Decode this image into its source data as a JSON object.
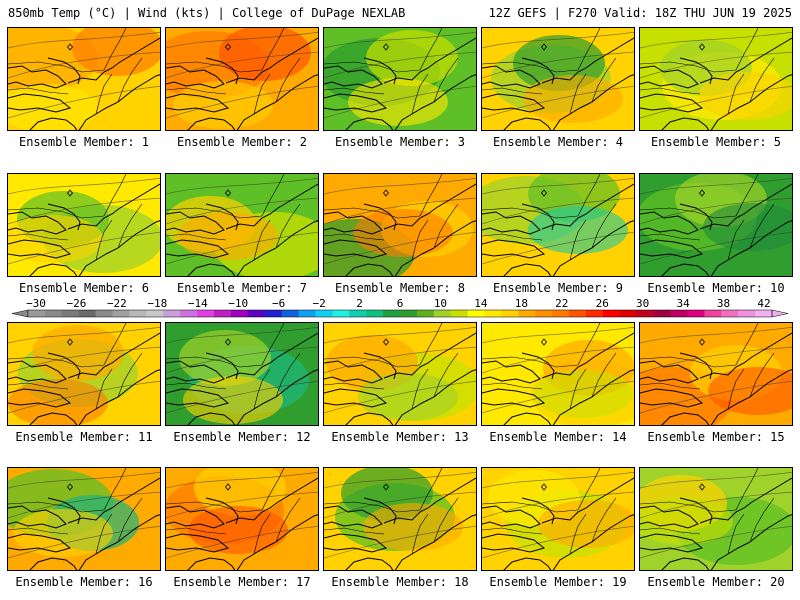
{
  "header": {
    "left": "850mb Temp (°C) | Wind (kts) | College of DuPage NEXLAB",
    "right": "12Z GEFS | F270 Valid: 18Z THU JUN 19 2025"
  },
  "label_prefix": "Ensemble Member:",
  "members": [
    {
      "label": "Ensemble Member: 1",
      "dominant": "yellow-orange",
      "colors": [
        "#ffd200",
        "#ffaa00",
        "#ff7c00",
        "#ffe900"
      ]
    },
    {
      "label": "Ensemble Member: 2",
      "dominant": "orange",
      "colors": [
        "#ffaa00",
        "#ff7c00",
        "#ff5500",
        "#ffd200"
      ]
    },
    {
      "label": "Ensemble Member: 3",
      "dominant": "green-yellow",
      "colors": [
        "#5fbf26",
        "#2f9e2f",
        "#c8e000",
        "#ffe900"
      ]
    },
    {
      "label": "Ensemble Member: 4",
      "dominant": "yellow-green",
      "colors": [
        "#ffd200",
        "#9fd22a",
        "#2f9e2f",
        "#ffaa00"
      ]
    },
    {
      "label": "Ensemble Member: 5",
      "dominant": "yellow-green",
      "colors": [
        "#c8e000",
        "#ffe900",
        "#9fd22a",
        "#ffd200"
      ]
    },
    {
      "label": "Ensemble Member: 6",
      "dominant": "yellow-green",
      "colors": [
        "#ffe900",
        "#9fd22a",
        "#5fbf26",
        "#ffd200"
      ]
    },
    {
      "label": "Ensemble Member: 7",
      "dominant": "green-yellow",
      "colors": [
        "#5fbf26",
        "#c8e000",
        "#ffd200",
        "#ffaa00"
      ]
    },
    {
      "label": "Ensemble Member: 8",
      "dominant": "orange-green",
      "colors": [
        "#ffaa00",
        "#2f9e2f",
        "#ffd200",
        "#ff7c00"
      ]
    },
    {
      "label": "Ensemble Member: 9",
      "dominant": "yellow-green",
      "colors": [
        "#ffd200",
        "#9fd22a",
        "#5fbf26",
        "#1fc9a0"
      ]
    },
    {
      "label": "Ensemble Member: 10",
      "dominant": "green",
      "colors": [
        "#2f9e2f",
        "#5fbf26",
        "#9fd22a",
        "#1f8a3a"
      ]
    },
    {
      "label": "Ensemble Member: 11",
      "dominant": "yellow-orange",
      "colors": [
        "#ffd200",
        "#9fd22a",
        "#ffaa00",
        "#ff7c00"
      ]
    },
    {
      "label": "Ensemble Member: 12",
      "dominant": "green",
      "colors": [
        "#2f9e2f",
        "#1fb47a",
        "#9fd22a",
        "#ffd200"
      ]
    },
    {
      "label": "Ensemble Member: 13",
      "dominant": "yellow",
      "colors": [
        "#ffd200",
        "#c8e000",
        "#ffaa00",
        "#9fd22a"
      ]
    },
    {
      "label": "Ensemble Member: 14",
      "dominant": "yellow",
      "colors": [
        "#ffe900",
        "#ffd200",
        "#ffaa00",
        "#c8e000"
      ]
    },
    {
      "label": "Ensemble Member: 15",
      "dominant": "orange",
      "colors": [
        "#ffaa00",
        "#ff7c00",
        "#ffd200",
        "#ff5500"
      ]
    },
    {
      "label": "Ensemble Member: 16",
      "dominant": "green-orange",
      "colors": [
        "#ffaa00",
        "#5fbf26",
        "#1fb47a",
        "#ffd200"
      ]
    },
    {
      "label": "Ensemble Member: 17",
      "dominant": "orange",
      "colors": [
        "#ffaa00",
        "#ff7c00",
        "#ffd200",
        "#ff5500"
      ]
    },
    {
      "label": "Ensemble Member: 18",
      "dominant": "yellow-green",
      "colors": [
        "#ffd200",
        "#5fbf26",
        "#2f9e2f",
        "#ffaa00"
      ]
    },
    {
      "label": "Ensemble Member: 19",
      "dominant": "yellow",
      "colors": [
        "#ffd200",
        "#c8e000",
        "#ffe900",
        "#ffaa00"
      ]
    },
    {
      "label": "Ensemble Member: 20",
      "dominant": "green-yellow",
      "colors": [
        "#9fd22a",
        "#5fbf26",
        "#ffd200",
        "#c8e000"
      ]
    }
  ],
  "colorbar": {
    "ticks": [
      "−30",
      "−26",
      "−22",
      "−18",
      "−14",
      "−10",
      "−6",
      "−2",
      "2",
      "6",
      "10",
      "14",
      "18",
      "22",
      "26",
      "30",
      "34",
      "38",
      "42"
    ],
    "colors": [
      "#9a9a9a",
      "#8a8a8a",
      "#7a7a7a",
      "#6a6a6a",
      "#8a8a8a",
      "#a0a0a0",
      "#b8b8b8",
      "#c8c8c8",
      "#c8a0d8",
      "#d070e0",
      "#e040e0",
      "#c020c0",
      "#a000c0",
      "#6000c0",
      "#2020d0",
      "#1060e0",
      "#10a0f0",
      "#10d0f0",
      "#20f0e0",
      "#10d0b0",
      "#10c080",
      "#20a040",
      "#2f9e2f",
      "#60b020",
      "#9fd22a",
      "#c8e000",
      "#ffff00",
      "#ffe900",
      "#ffd200",
      "#ffaa00",
      "#ff9000",
      "#ff7c00",
      "#ff5500",
      "#ff2a00",
      "#ff0000",
      "#e00000",
      "#c00020",
      "#a00040",
      "#c00060",
      "#e00080",
      "#f040a0",
      "#f070c0",
      "#f090e0",
      "#f0b0f0"
    ]
  }
}
